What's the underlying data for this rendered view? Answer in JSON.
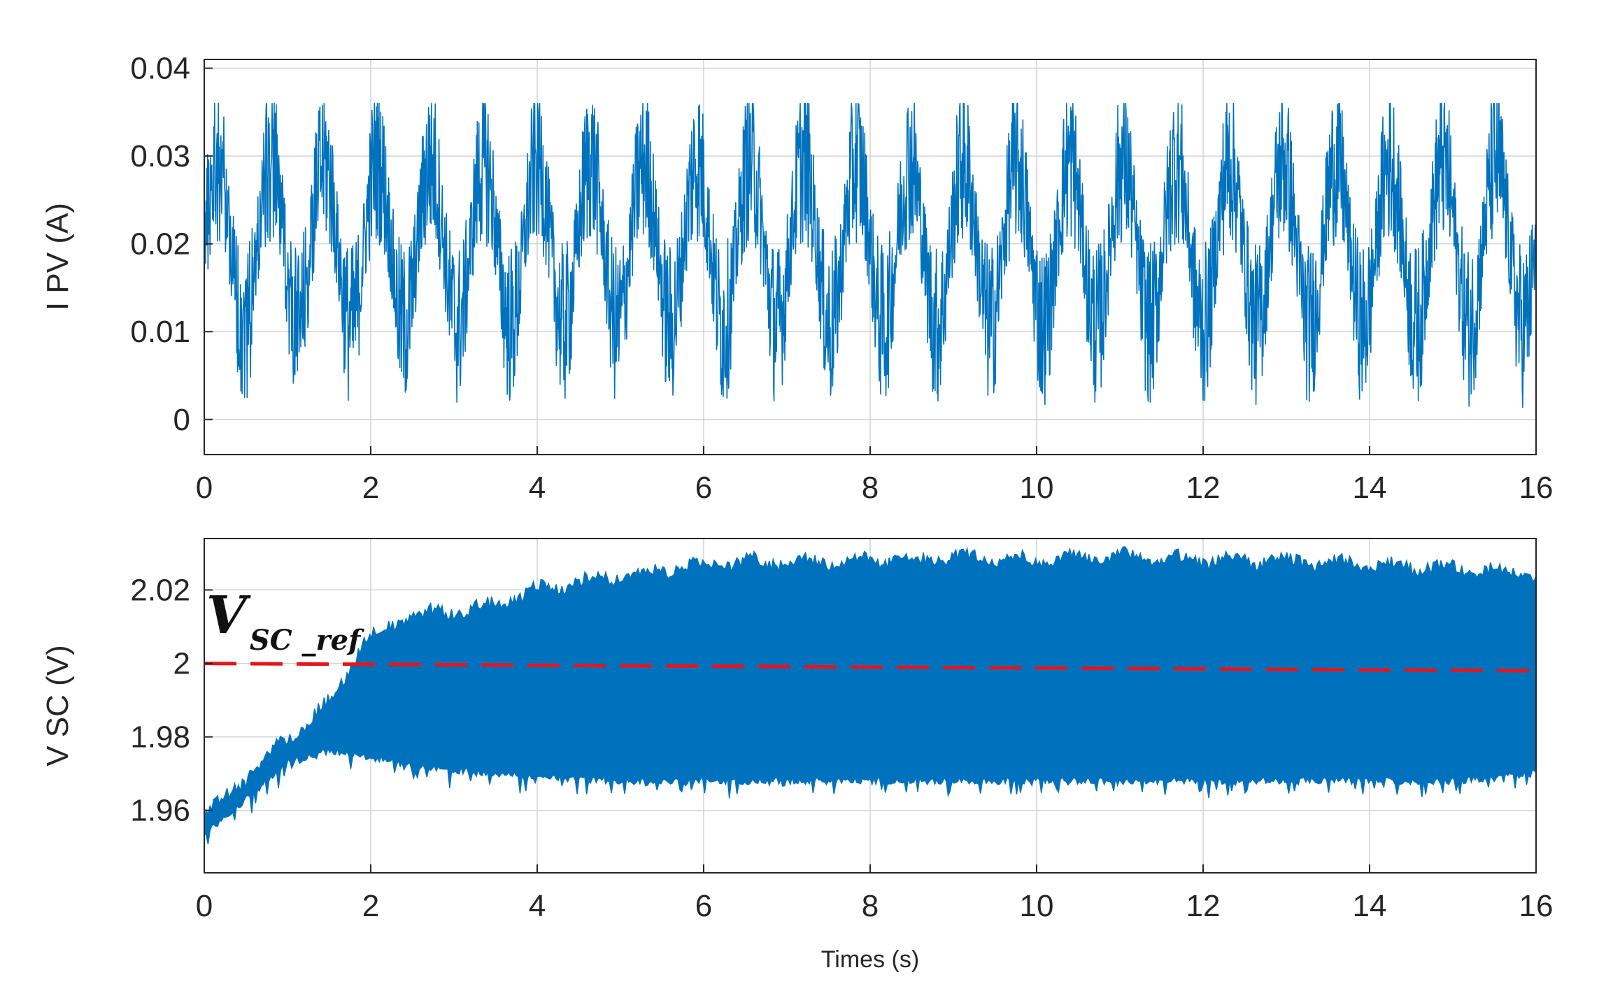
{
  "chart_data": [
    {
      "type": "line",
      "ylabel": "I PV (A)",
      "xlabel": "",
      "xlim": [
        0,
        16
      ],
      "ylim": [
        -0.004,
        0.041
      ],
      "x_ticks": [
        "0",
        "2",
        "4",
        "6",
        "8",
        "10",
        "12",
        "14",
        "16"
      ],
      "y_ticks": [
        "0",
        "0.01",
        "0.02",
        "0.03",
        "0.04"
      ],
      "grid": true,
      "line_color": "#0072bd",
      "signal": {
        "mean": 0.02,
        "oscillation_period_s": 0.64,
        "typical_peak": 0.036,
        "typical_trough": 0.002,
        "min": 0.0,
        "max": 0.036
      },
      "series": [
        {
          "x": [
            0,
            0.3,
            0.6,
            0.9,
            1.2,
            1.5,
            1.8,
            2.1,
            2.4,
            2.7,
            3.0,
            3.3,
            3.6,
            3.9,
            4.2,
            4.5,
            4.8,
            5.1,
            5.4,
            5.7,
            6.0,
            6.3,
            6.6,
            6.9,
            7.2,
            7.5,
            7.8,
            8.1,
            8.4,
            8.7,
            9.0,
            9.3,
            9.6,
            9.9,
            10.2,
            10.5,
            10.8,
            11.1,
            11.4,
            11.7,
            12.0,
            12.3,
            12.6,
            12.9,
            13.2,
            13.5,
            13.8,
            14.1,
            14.4,
            14.7,
            15.0,
            15.3,
            15.6,
            16.0
          ],
          "values": [
            0.022,
            0.035,
            0.004,
            0.031,
            0.002,
            0.029,
            0.003,
            0.034,
            0.001,
            0.03,
            0.002,
            0.035,
            0.003,
            0.031,
            0.002,
            0.034,
            0.002,
            0.03,
            0.001,
            0.035,
            0.003,
            0.032,
            0.001,
            0.033,
            0.002,
            0.035,
            0.002,
            0.031,
            0.002,
            0.034,
            0.003,
            0.032,
            0.001,
            0.033,
            0.002,
            0.034,
            0.002,
            0.031,
            0.001,
            0.035,
            0.003,
            0.034,
            0.001,
            0.031,
            0.002,
            0.035,
            0.003,
            0.032,
            0.002,
            0.034,
            0.003,
            0.031,
            0.004,
            0.026
          ]
        }
      ]
    },
    {
      "type": "line",
      "ylabel": "V SC (V)",
      "xlabel": "Times (s)",
      "xlim": [
        0,
        16
      ],
      "ylim": [
        1.943,
        2.034
      ],
      "x_ticks": [
        "0",
        "2",
        "4",
        "6",
        "8",
        "10",
        "12",
        "14",
        "16"
      ],
      "y_ticks": [
        "1.96",
        "1.98",
        "2",
        "2.02"
      ],
      "grid": true,
      "line_color": "#0072bd",
      "reference_color": "#e8141b",
      "annotation": {
        "main": "V",
        "sub": "SC _ref"
      },
      "series": [
        {
          "x": [
            0,
            1,
            1.5,
            1.9,
            2.5,
            3,
            3.5,
            4,
            5,
            6,
            7,
            8,
            9,
            10,
            11,
            12,
            13,
            14,
            15,
            16
          ],
          "upper": [
            1.958,
            1.98,
            1.989,
            2.006,
            2.013,
            2.014,
            2.016,
            2.02,
            2.024,
            2.027,
            2.028,
            2.028,
            2.029,
            2.028,
            2.029,
            2.028,
            2.028,
            2.027,
            2.026,
            2.024
          ],
          "lower": [
            1.953,
            1.973,
            1.976,
            1.975,
            1.972,
            1.971,
            1.97,
            1.969,
            1.968,
            1.968,
            1.968,
            1.968,
            1.968,
            1.968,
            1.968,
            1.968,
            1.968,
            1.968,
            1.968,
            1.97
          ]
        },
        {
          "x": [
            0,
            16
          ],
          "values": [
            2.0,
            1.998
          ],
          "style": "dashed"
        }
      ]
    }
  ]
}
